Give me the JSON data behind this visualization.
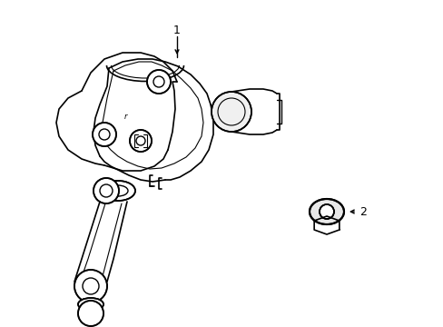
{
  "background_color": "#ffffff",
  "line_color": "#000000",
  "line_width": 1.0,
  "fig_width": 4.89,
  "fig_height": 3.6,
  "dpi": 100,
  "label1_text": "1",
  "label2_text": "2"
}
